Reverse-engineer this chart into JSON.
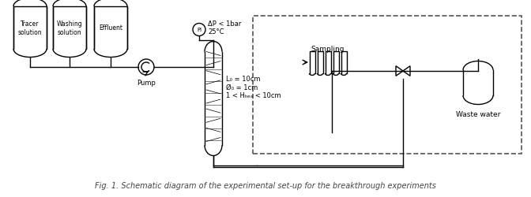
{
  "bg_color": "#ffffff",
  "line_color": "#000000",
  "text_color": "#000000",
  "title": "Fig. 1. Schematic diagram of the experimental set-up for the breakthrough experiments",
  "tank_labels": [
    "Tracer\nsolution",
    "Washing\nsolution",
    "Effluent"
  ],
  "pump_label": "Pump",
  "pressure_label": "ΔP < 1bar\n25°C",
  "column_label": "L₀ = 10cm\nØ₀ = 1cm\n1 < Hₕₑₐ < 10cm",
  "sampling_label": "Sampling",
  "waste_label": "Waste water",
  "fig_caption": "Fig. 1. Schematic diagram of the experimental set-up for the breakthrough experiments"
}
